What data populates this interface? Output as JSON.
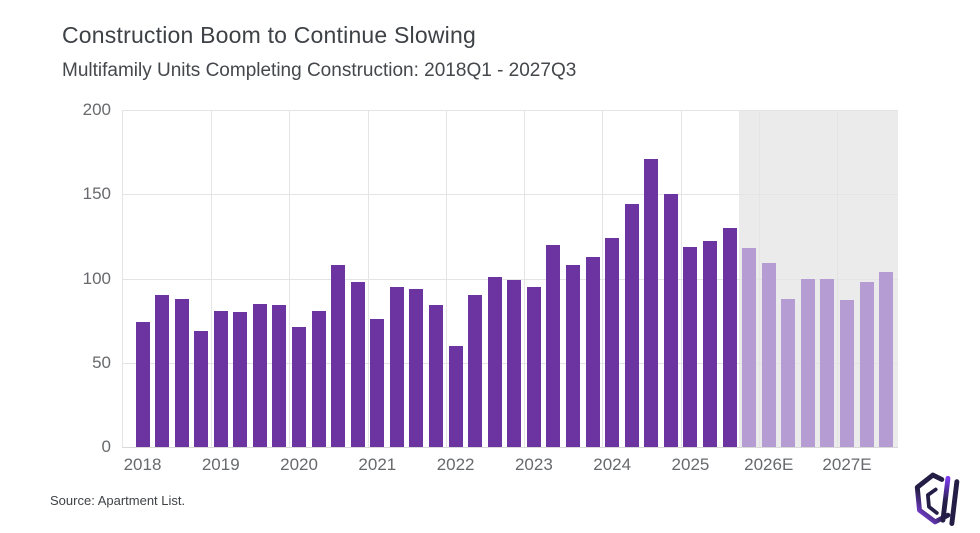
{
  "header": {
    "title": "Construction Boom to Continue Slowing",
    "subtitle": "Multifamily Units Completing Construction: 2018Q1 - 2027Q3"
  },
  "footer": {
    "source": "Source: Apartment List.",
    "logo": "apartment-list-logo"
  },
  "colors": {
    "bar_actual": "#6b34a0",
    "bar_estimate": "#b59dd3",
    "forecast_background": "#ebebeb",
    "gridline": "#e4e4e4",
    "axis_text": "#67696c",
    "title_text": "#3e4145",
    "logo_navy": "#241e46",
    "logo_purple": "#8a45f2"
  },
  "chart_data": {
    "type": "bar",
    "title": "Construction Boom to Continue Slowing",
    "subtitle": "Multifamily Units Completing Construction: 2018Q1 - 2027Q3",
    "x": [
      "2018Q1",
      "2018Q2",
      "2018Q3",
      "2018Q4",
      "2019Q1",
      "2019Q2",
      "2019Q3",
      "2019Q4",
      "2020Q1",
      "2020Q2",
      "2020Q3",
      "2020Q4",
      "2021Q1",
      "2021Q2",
      "2021Q3",
      "2021Q4",
      "2022Q1",
      "2022Q2",
      "2022Q3",
      "2022Q4",
      "2023Q1",
      "2023Q2",
      "2023Q3",
      "2023Q4",
      "2024Q1",
      "2024Q2",
      "2024Q3",
      "2024Q4",
      "2025Q1",
      "2025Q2",
      "2025Q3",
      "2025Q4",
      "2026Q1",
      "2026Q2",
      "2026Q3",
      "2026Q4",
      "2027Q1",
      "2027Q2",
      "2027Q3"
    ],
    "values": [
      74,
      90,
      88,
      69,
      81,
      80,
      85,
      84,
      71,
      81,
      108,
      98,
      76,
      95,
      94,
      84,
      60,
      90,
      101,
      99,
      95,
      120,
      108,
      113,
      124,
      144,
      171,
      150,
      119,
      122,
      130,
      118,
      109,
      88,
      100,
      100,
      87,
      98,
      104
    ],
    "estimate_start_index": 31,
    "year_labels": [
      "2018",
      "2019",
      "2020",
      "2021",
      "2022",
      "2023",
      "2024",
      "2025",
      "2026E",
      "2027E"
    ],
    "ylabel": "",
    "xlabel": "",
    "ylim": [
      0,
      200
    ],
    "yticks": [
      0,
      50,
      100,
      150,
      200
    ],
    "grid": true,
    "legend": false,
    "notes": "Bars from estimate_start_index onward are forecast (lighter purple) over a gray shaded region."
  }
}
